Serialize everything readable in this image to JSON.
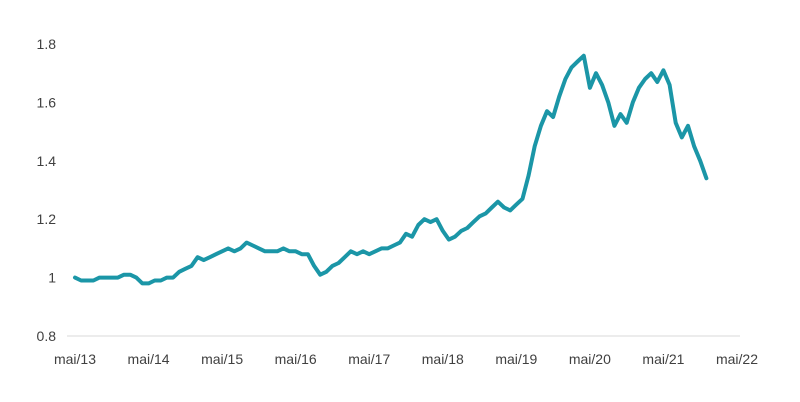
{
  "chart_data": {
    "type": "line",
    "title": "",
    "xlabel": "",
    "ylabel": "",
    "x_tick_labels": [
      "mai/13",
      "mai/14",
      "mai/15",
      "mai/16",
      "mai/17",
      "mai/18",
      "mai/19",
      "mai/20",
      "mai/21",
      "mai/22"
    ],
    "y_tick_labels": [
      "0.8",
      "1",
      "1.2",
      "1.4",
      "1.6",
      "1.8"
    ],
    "ylim": [
      0.8,
      1.8
    ],
    "xlim": [
      "2013-05",
      "2022-05"
    ],
    "grid": false,
    "legend": "none",
    "series": [
      {
        "color": "#1B96A7",
        "points": [
          [
            "2013-05",
            1.0
          ],
          [
            "2013-06",
            0.99
          ],
          [
            "2013-07",
            0.99
          ],
          [
            "2013-08",
            0.99
          ],
          [
            "2013-09",
            1.0
          ],
          [
            "2013-10",
            1.0
          ],
          [
            "2013-11",
            1.0
          ],
          [
            "2013-12",
            1.0
          ],
          [
            "2014-01",
            1.01
          ],
          [
            "2014-02",
            1.01
          ],
          [
            "2014-03",
            1.0
          ],
          [
            "2014-04",
            0.98
          ],
          [
            "2014-05",
            0.98
          ],
          [
            "2014-06",
            0.99
          ],
          [
            "2014-07",
            0.99
          ],
          [
            "2014-08",
            1.0
          ],
          [
            "2014-09",
            1.0
          ],
          [
            "2014-10",
            1.02
          ],
          [
            "2014-11",
            1.03
          ],
          [
            "2014-12",
            1.04
          ],
          [
            "2015-01",
            1.07
          ],
          [
            "2015-02",
            1.06
          ],
          [
            "2015-03",
            1.07
          ],
          [
            "2015-04",
            1.08
          ],
          [
            "2015-05",
            1.09
          ],
          [
            "2015-06",
            1.1
          ],
          [
            "2015-07",
            1.09
          ],
          [
            "2015-08",
            1.1
          ],
          [
            "2015-09",
            1.12
          ],
          [
            "2015-10",
            1.11
          ],
          [
            "2015-11",
            1.1
          ],
          [
            "2015-12",
            1.09
          ],
          [
            "2016-01",
            1.09
          ],
          [
            "2016-02",
            1.09
          ],
          [
            "2016-03",
            1.1
          ],
          [
            "2016-04",
            1.09
          ],
          [
            "2016-05",
            1.09
          ],
          [
            "2016-06",
            1.08
          ],
          [
            "2016-07",
            1.08
          ],
          [
            "2016-08",
            1.04
          ],
          [
            "2016-09",
            1.01
          ],
          [
            "2016-10",
            1.02
          ],
          [
            "2016-11",
            1.04
          ],
          [
            "2016-12",
            1.05
          ],
          [
            "2017-01",
            1.07
          ],
          [
            "2017-02",
            1.09
          ],
          [
            "2017-03",
            1.08
          ],
          [
            "2017-04",
            1.09
          ],
          [
            "2017-05",
            1.08
          ],
          [
            "2017-06",
            1.09
          ],
          [
            "2017-07",
            1.1
          ],
          [
            "2017-08",
            1.1
          ],
          [
            "2017-09",
            1.11
          ],
          [
            "2017-10",
            1.12
          ],
          [
            "2017-11",
            1.15
          ],
          [
            "2017-12",
            1.14
          ],
          [
            "2018-01",
            1.18
          ],
          [
            "2018-02",
            1.2
          ],
          [
            "2018-03",
            1.19
          ],
          [
            "2018-04",
            1.2
          ],
          [
            "2018-05",
            1.16
          ],
          [
            "2018-06",
            1.13
          ],
          [
            "2018-07",
            1.14
          ],
          [
            "2018-08",
            1.16
          ],
          [
            "2018-09",
            1.17
          ],
          [
            "2018-10",
            1.19
          ],
          [
            "2018-11",
            1.21
          ],
          [
            "2018-12",
            1.22
          ],
          [
            "2019-01",
            1.24
          ],
          [
            "2019-02",
            1.26
          ],
          [
            "2019-03",
            1.24
          ],
          [
            "2019-04",
            1.23
          ],
          [
            "2019-05",
            1.25
          ],
          [
            "2019-06",
            1.27
          ],
          [
            "2019-07",
            1.35
          ],
          [
            "2019-08",
            1.45
          ],
          [
            "2019-09",
            1.52
          ],
          [
            "2019-10",
            1.57
          ],
          [
            "2019-11",
            1.55
          ],
          [
            "2019-12",
            1.62
          ],
          [
            "2020-01",
            1.68
          ],
          [
            "2020-02",
            1.72
          ],
          [
            "2020-03",
            1.74
          ],
          [
            "2020-04",
            1.76
          ],
          [
            "2020-05",
            1.65
          ],
          [
            "2020-06",
            1.7
          ],
          [
            "2020-07",
            1.66
          ],
          [
            "2020-08",
            1.6
          ],
          [
            "2020-09",
            1.52
          ],
          [
            "2020-10",
            1.56
          ],
          [
            "2020-11",
            1.53
          ],
          [
            "2020-12",
            1.6
          ],
          [
            "2021-01",
            1.65
          ],
          [
            "2021-02",
            1.68
          ],
          [
            "2021-03",
            1.7
          ],
          [
            "2021-04",
            1.67
          ],
          [
            "2021-05",
            1.71
          ],
          [
            "2021-06",
            1.66
          ],
          [
            "2021-07",
            1.53
          ],
          [
            "2021-08",
            1.48
          ],
          [
            "2021-09",
            1.52
          ],
          [
            "2021-10",
            1.45
          ],
          [
            "2021-11",
            1.4
          ],
          [
            "2021-12",
            1.34
          ]
        ]
      }
    ]
  }
}
